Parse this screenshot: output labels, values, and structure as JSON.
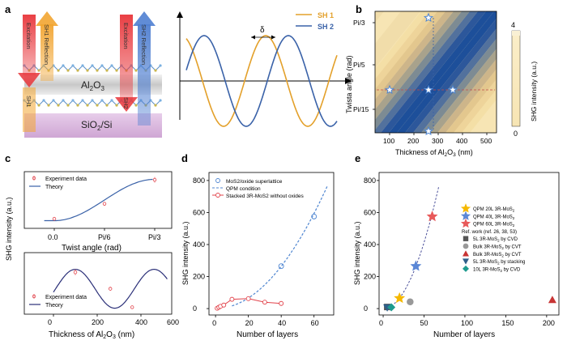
{
  "panel_labels": {
    "a": "a",
    "b": "b",
    "c": "c",
    "d": "d",
    "e": "e"
  },
  "schematic": {
    "excitation_left": "Excitation",
    "sh1_reflection": "SH1 Reflection",
    "sh1_transmission": "SH1",
    "excitation_right": "Excitation",
    "sh2_reflection": "SH2 Reflection",
    "sh2_transmission": "SH2",
    "oxide_label": "Al",
    "oxide_sub": "2",
    "oxide_o": "O",
    "oxide_sub2": "3",
    "substrate_label": "SiO",
    "substrate_sub": "2",
    "substrate_rest": "/Si",
    "colors": {
      "red": "#e8353a",
      "orange": "#f2a531",
      "blue": "#4f7fd1",
      "oxide": "#d4d4d4",
      "substrate": "#d9b6dc"
    }
  },
  "waves": {
    "legend": [
      {
        "name": "SH 1",
        "color": "#e3a02a"
      },
      {
        "name": "SH 2",
        "color": "#3a62a8"
      }
    ],
    "delta": "δ"
  },
  "chart_data": [
    {
      "id": "b",
      "type": "heatmap",
      "xlabel": "Thickness of Al2O3 (nm)",
      "ylabel": "Twista angle (rad)",
      "xticks": [
        100,
        200,
        300,
        400,
        500
      ],
      "xlim": [
        40,
        540
      ],
      "yticks": [
        "Pi/15",
        "Pi/5",
        "Pi/3"
      ],
      "colorbar": {
        "label": "SHG intensity (a.u.)",
        "max": "4",
        "min": "0",
        "colors": [
          "#f7e5b4",
          "#1d4f9a"
        ]
      },
      "stars": [
        {
          "x": 100,
          "y": "Pi/5-"
        },
        {
          "x": 260,
          "y": "Pi/3"
        },
        {
          "x": 260,
          "y": "Pi/5-"
        },
        {
          "x": 360,
          "y": "Pi/5-"
        },
        {
          "x": 260,
          "y": "bottom"
        }
      ]
    },
    {
      "id": "c_top",
      "type": "line",
      "xlabel": "Twist angle (rad)",
      "xtick_labels": [
        "0.0",
        "Pi/6",
        "Pi/3"
      ],
      "legend": [
        "Experiment data",
        "Theory"
      ],
      "points": [
        [
          0,
          0.1
        ],
        [
          0.5,
          0.42
        ],
        [
          1.0,
          0.93
        ]
      ],
      "errors": [
        0.04,
        0.04,
        0.06
      ]
    },
    {
      "id": "c_bottom",
      "type": "line",
      "xlabel": "Thickness of Al2O3 (nm)",
      "xticks": [
        0,
        200,
        400,
        600
      ],
      "legend": [
        "Experiment data",
        "Theory"
      ],
      "points": [
        [
          100,
          0.78
        ],
        [
          260,
          0.44
        ],
        [
          360,
          0.06
        ]
      ],
      "errors": [
        0.06,
        0.04,
        0.03
      ]
    },
    {
      "id": "d",
      "type": "scatter",
      "xlabel": "Number of layers",
      "ylabel": "SHG intensity (a.u.)",
      "xticks": [
        0,
        20,
        40,
        60
      ],
      "yticks": [
        0,
        200,
        400,
        600,
        800
      ],
      "xlim": [
        -4,
        72
      ],
      "ylim": [
        -40,
        850
      ],
      "series": [
        {
          "name": "MoS2/oxide superlattice",
          "color": "#4f86d1",
          "points": [
            [
              40,
              265
            ],
            [
              60,
              575
            ]
          ]
        },
        {
          "name": "QPM condition",
          "color": "#4f86d1"
        },
        {
          "name": "Stacked 3R-MoS2 without oxides",
          "color": "#e2434b",
          "points": [
            [
              1,
              2
            ],
            [
              2,
              8
            ],
            [
              3,
              14
            ],
            [
              5,
              22
            ],
            [
              10,
              58
            ],
            [
              20,
              62
            ],
            [
              30,
              40
            ],
            [
              40,
              32
            ]
          ]
        }
      ],
      "qpm_curve": {
        "x_start": 10,
        "x_end": 68,
        "a": 0.165
      }
    },
    {
      "id": "e",
      "type": "scatter",
      "xlabel": "Number of layers",
      "ylabel": "SHG intensity (a.u.)",
      "xticks": [
        0,
        50,
        100,
        150,
        200
      ],
      "yticks": [
        0,
        200,
        400,
        600,
        800
      ],
      "xlim": [
        -5,
        215
      ],
      "ylim": [
        -40,
        850
      ],
      "legend_items": [
        {
          "label": "QPM 20L 3R-MoS",
          "sub": "2",
          "marker": "star",
          "color": "#f5b800"
        },
        {
          "label": "QPM 40L 3R-MoS",
          "sub": "2",
          "marker": "star",
          "color": "#5b87d6"
        },
        {
          "label": "QPM 60L 3R-MoS",
          "sub": "2",
          "marker": "star",
          "color": "#e85a5a"
        },
        {
          "label": "Ref. work (ref. 26, 38, 53)",
          "sub": "",
          "marker": "none",
          "color": "#333333"
        },
        {
          "label": "5L 3R-MoS",
          "sub": "2",
          "suffix": " by CVD",
          "marker": "square",
          "color": "#555555"
        },
        {
          "label": "Bulk 3R-MoS",
          "sub": "2",
          "suffix": " by CVT",
          "marker": "circle",
          "color": "#999999"
        },
        {
          "label": "Bulk 3R-MoS",
          "sub": "2",
          "suffix": " by CVT",
          "marker": "triangle",
          "color": "#c83434"
        },
        {
          "label": "5L 3R-MoS",
          "sub": "2",
          "suffix": " by stacking",
          "marker": "tri-down",
          "color": "#2f5f8a"
        },
        {
          "label": "10L 3R-MoS",
          "sub": "2",
          "suffix": " by CVD",
          "marker": "diamond",
          "color": "#1e9b8f"
        }
      ],
      "points": [
        {
          "x": 20,
          "y": 65,
          "marker": "star",
          "color": "#f5b800"
        },
        {
          "x": 40,
          "y": 265,
          "marker": "star",
          "color": "#5b87d6"
        },
        {
          "x": 60,
          "y": 575,
          "marker": "star",
          "color": "#e85a5a"
        },
        {
          "x": 5,
          "y": 10,
          "marker": "square",
          "color": "#555555"
        },
        {
          "x": 33,
          "y": 42,
          "marker": "circle",
          "color": "#999999"
        },
        {
          "x": 207,
          "y": 55,
          "marker": "triangle",
          "color": "#c83434"
        },
        {
          "x": 5,
          "y": 6,
          "marker": "tri-down",
          "color": "#2f5f8a"
        },
        {
          "x": 10,
          "y": 8,
          "marker": "diamond",
          "color": "#1e9b8f"
        }
      ],
      "qpm_curve": {
        "x_start": 10,
        "x_end": 68,
        "a": 0.165
      }
    }
  ],
  "ylabels": {
    "c_left": "SHG intensity (a.u.)"
  }
}
